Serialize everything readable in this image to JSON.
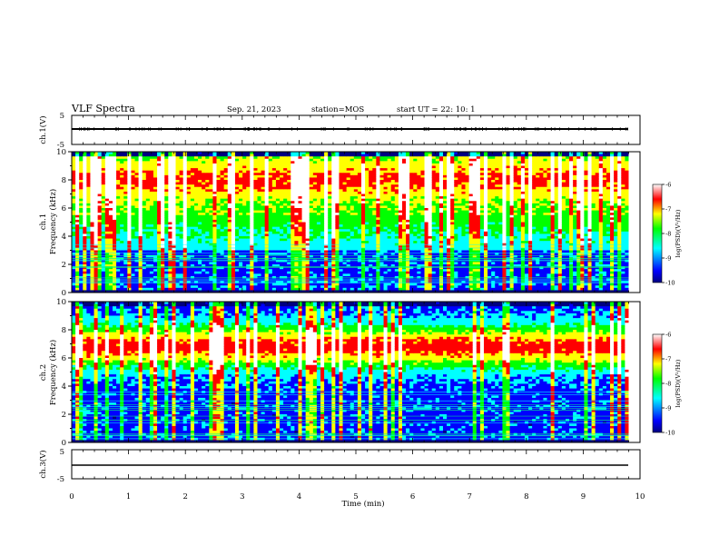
{
  "header": {
    "title": "VLF Spectra",
    "date": "Sep. 21, 2023",
    "station": "station=MOS",
    "start": "start UT =  22: 10: 1"
  },
  "chart_data": [
    {
      "type": "line",
      "name": "ch1-waveform",
      "ylabel": "ch.1(V)",
      "ylim": [
        -5,
        5
      ],
      "yticks": [
        "5",
        "-5"
      ],
      "x": [
        0,
        9.8
      ],
      "y": [
        0,
        0
      ]
    },
    {
      "type": "heatmap",
      "name": "ch1-spectrogram",
      "ylabel": "Frequency (kHz)",
      "channel_label": "ch.1",
      "ylim": [
        0,
        10
      ],
      "yticks": [
        "0",
        "2",
        "4",
        "6",
        "8",
        "10"
      ],
      "colorbar": {
        "label": "log(PSD)(V²/Hz)",
        "ticks": [
          "-6",
          "-7",
          "-8",
          "-9",
          "-10"
        ],
        "range": [
          -10,
          -6
        ]
      }
    },
    {
      "type": "heatmap",
      "name": "ch2-spectrogram",
      "ylabel": "Frequency (kHz)",
      "channel_label": "ch.2",
      "ylim": [
        0,
        10
      ],
      "yticks": [
        "0",
        "2",
        "4",
        "6",
        "8",
        "10"
      ],
      "colorbar": {
        "label": "log(PSD)(V²/Hz)",
        "ticks": [
          "-6",
          "-7",
          "-8",
          "-9",
          "-10"
        ],
        "range": [
          -10,
          -6
        ]
      }
    },
    {
      "type": "line",
      "name": "ch3-waveform",
      "ylabel": "ch.3(V)",
      "ylim": [
        -5,
        5
      ],
      "yticks": [
        "5",
        "-5"
      ],
      "x": [
        0,
        9.8
      ],
      "y": [
        0,
        0
      ]
    }
  ],
  "xaxis": {
    "label": "Time (min)",
    "range": [
      0,
      10
    ],
    "ticks": [
      "0",
      "1",
      "2",
      "3",
      "4",
      "5",
      "6",
      "7",
      "8",
      "9",
      "10"
    ]
  },
  "colors": {
    "scale": [
      "#000080",
      "#0000ff",
      "#00ffff",
      "#00ff00",
      "#ffff00",
      "#ff0000",
      "#ffffff"
    ]
  }
}
